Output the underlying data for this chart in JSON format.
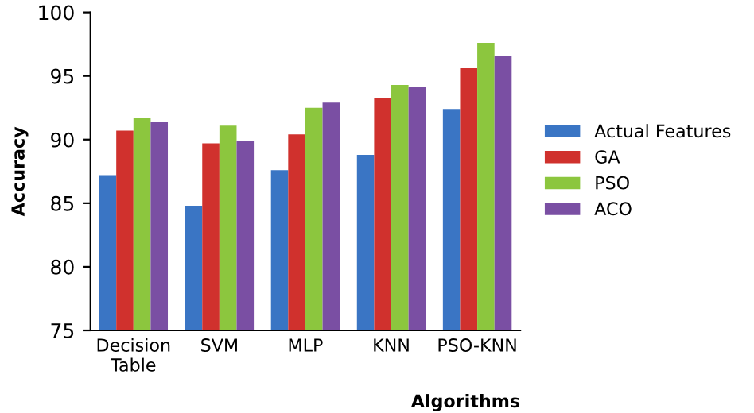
{
  "chart_data": {
    "type": "bar",
    "xlabel": "Algorithms",
    "ylabel": "Accuracy",
    "categories": [
      "Decision\nTable",
      "SVM",
      "MLP",
      "KNN",
      "PSO-KNN"
    ],
    "series": [
      {
        "name": "Actual Features",
        "color": "#3a75c4",
        "values": [
          87.2,
          84.8,
          87.6,
          88.8,
          92.4
        ]
      },
      {
        "name": "GA",
        "color": "#d0312d",
        "values": [
          90.7,
          89.7,
          90.4,
          93.3,
          95.6
        ]
      },
      {
        "name": "PSO",
        "color": "#8cc63e",
        "values": [
          91.7,
          91.1,
          92.5,
          94.3,
          97.6
        ]
      },
      {
        "name": "ACO",
        "color": "#7a4fa3",
        "values": [
          91.4,
          89.9,
          92.9,
          94.1,
          96.6
        ]
      }
    ],
    "ylim": [
      75,
      100
    ],
    "yticks": [
      75,
      80,
      85,
      90,
      95,
      100
    ],
    "grid": false,
    "legend": "right"
  }
}
